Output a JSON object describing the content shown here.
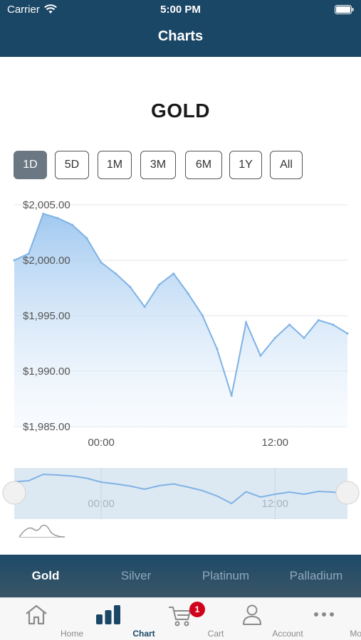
{
  "status_bar": {
    "carrier": "Carrier",
    "time": "5:00 PM"
  },
  "nav": {
    "title": "Charts"
  },
  "asset": {
    "title": "GOLD"
  },
  "ranges": [
    {
      "label": "1D",
      "active": true
    },
    {
      "label": "5D",
      "active": false
    },
    {
      "label": "1M",
      "active": false
    },
    {
      "label": "3M",
      "active": false
    },
    {
      "label": "6M",
      "active": false
    },
    {
      "label": "1Y",
      "active": false
    },
    {
      "label": "All",
      "active": false
    }
  ],
  "chart_data": {
    "type": "area",
    "title": "",
    "xlabel": "",
    "ylabel": "",
    "x_ticks": [
      "00:00",
      "12:00"
    ],
    "y_ticks": [
      "$2,005.00",
      "$2,000.00",
      "$1,995.00",
      "$1,990.00",
      "$1,985.00"
    ],
    "ylim": [
      1985,
      2005
    ],
    "grid": true,
    "x": [
      "18:00",
      "19:00",
      "20:00",
      "21:00",
      "22:00",
      "23:00",
      "00:00",
      "01:00",
      "02:00",
      "03:00",
      "04:00",
      "05:00",
      "06:00",
      "07:00",
      "08:00",
      "09:00",
      "10:00",
      "11:00",
      "12:00",
      "13:00",
      "14:00",
      "15:00",
      "16:00",
      "17:00"
    ],
    "series": [
      {
        "name": "",
        "color": "#7fb2e5",
        "values": [
          2000.0,
          2000.6,
          2004.2,
          2003.8,
          2003.2,
          2002.0,
          1999.8,
          1998.8,
          1997.6,
          1995.8,
          1997.8,
          1998.8,
          1997.0,
          1995.0,
          1992.0,
          1987.8,
          1994.4,
          1991.4,
          1993.0,
          1994.2,
          1993.0,
          1994.6,
          1994.2,
          1993.4
        ]
      }
    ]
  },
  "navigator": {
    "x_ticks": [
      "00:00",
      "12:00"
    ]
  },
  "metal_tabs": [
    {
      "label": "Gold",
      "active": true
    },
    {
      "label": "Silver",
      "active": false
    },
    {
      "label": "Platinum",
      "active": false
    },
    {
      "label": "Palladium",
      "active": false
    }
  ],
  "tabbar": {
    "items": [
      {
        "label": "Home",
        "icon": "home-icon"
      },
      {
        "label": "Chart",
        "icon": "bar-chart-icon"
      },
      {
        "label": "Cart",
        "icon": "cart-icon",
        "badge": "1"
      },
      {
        "label": "Account",
        "icon": "person-icon"
      },
      {
        "label": "More",
        "icon": "ellipsis-icon"
      }
    ],
    "active": "Chart"
  },
  "colors": {
    "brand": "#1b4766",
    "chart_line": "#7fb2e5",
    "badge": "#d0021b"
  }
}
